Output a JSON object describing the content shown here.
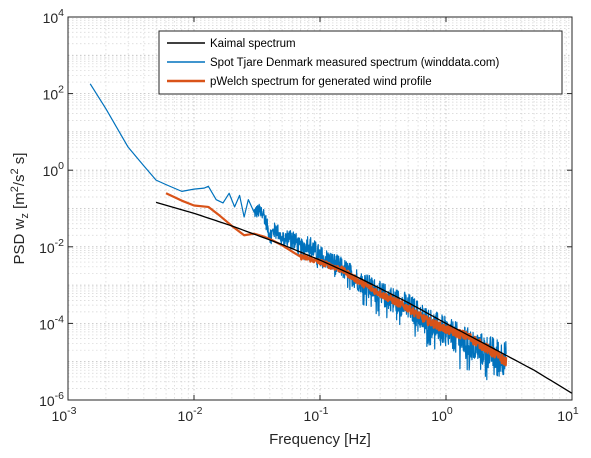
{
  "chart_data": {
    "type": "line",
    "xscale": "log",
    "yscale": "log",
    "xlim": [
      0.001,
      10
    ],
    "ylim": [
      1e-06,
      10000
    ],
    "x_ticks": [
      0.001,
      0.01,
      0.1,
      1,
      10
    ],
    "y_ticks": [
      1e-06,
      0.0001,
      0.01,
      1,
      100,
      10000
    ],
    "x_tick_labels": [
      {
        "base": "10",
        "exp": "-3"
      },
      {
        "base": "10",
        "exp": "-2"
      },
      {
        "base": "10",
        "exp": "-1"
      },
      {
        "base": "10",
        "exp": "0"
      },
      {
        "base": "10",
        "exp": "1"
      }
    ],
    "y_tick_labels": [
      {
        "base": "10",
        "exp": "-6"
      },
      {
        "base": "10",
        "exp": "-4"
      },
      {
        "base": "10",
        "exp": "-2"
      },
      {
        "base": "10",
        "exp": "0"
      },
      {
        "base": "10",
        "exp": "2"
      },
      {
        "base": "10",
        "exp": "4"
      }
    ],
    "xlabel": "Frequency [Hz]",
    "ylabel": {
      "t1": "PSD w",
      "sub": "z",
      "t2": " [m",
      "sup": "2",
      "t3": "/s",
      "sup2": "2",
      "t4": " s]"
    },
    "grid": "major and minor (dotted)",
    "legend_position": "top-right",
    "series": [
      {
        "name": "Kaimal spectrum",
        "color": "#000000",
        "style": "smooth",
        "x": [
          0.005,
          0.01,
          0.02,
          0.05,
          0.1,
          0.2,
          0.5,
          1,
          2,
          5,
          10
        ],
        "y": [
          0.145,
          0.075,
          0.035,
          0.0115,
          0.0045,
          0.0016,
          0.00035,
          0.0001,
          3e-05,
          6e-06,
          1.5e-06
        ]
      },
      {
        "name": "Spot Tjare Denmark measured spectrum (winddata.com)",
        "color": "#0072BD",
        "style": "noisy",
        "x": [
          0.0015,
          0.002,
          0.003,
          0.004,
          0.005,
          0.006,
          0.008,
          0.01,
          0.012,
          0.013,
          0.015,
          0.017,
          0.019,
          0.021,
          0.023,
          0.025,
          0.027,
          0.03,
          0.035,
          0.04,
          0.045,
          0.05,
          0.06,
          0.07,
          0.08,
          0.1,
          0.15,
          0.2,
          0.3,
          0.5,
          0.7,
          1,
          1.5,
          2,
          3
        ],
        "y": [
          180,
          40,
          4,
          1.3,
          0.55,
          0.42,
          0.28,
          0.32,
          0.34,
          0.38,
          0.17,
          0.14,
          0.25,
          0.11,
          0.22,
          0.06,
          0.17,
          0.08,
          0.09,
          0.02,
          0.03,
          0.015,
          0.02,
          0.009,
          0.013,
          0.006,
          0.0028,
          0.0014,
          0.0006,
          0.00028,
          0.00012,
          6e-05,
          3e-05,
          2e-05,
          1.2e-05
        ]
      },
      {
        "name": "pWelch spectrum for generated wind profile",
        "color": "#D95319",
        "style": "semi-noisy",
        "x": [
          0.006,
          0.008,
          0.01,
          0.013,
          0.016,
          0.02,
          0.025,
          0.03,
          0.035,
          0.04,
          0.05,
          0.06,
          0.07,
          0.08,
          0.1,
          0.15,
          0.2,
          0.3,
          0.5,
          0.7,
          1,
          1.5,
          2,
          3
        ],
        "y": [
          0.25,
          0.16,
          0.12,
          0.11,
          0.065,
          0.035,
          0.02,
          0.022,
          0.019,
          0.016,
          0.011,
          0.0075,
          0.0055,
          0.005,
          0.004,
          0.0025,
          0.0013,
          0.0006,
          0.00025,
          0.00012,
          7e-05,
          4.5e-05,
          2.5e-05,
          1e-05
        ]
      }
    ]
  }
}
